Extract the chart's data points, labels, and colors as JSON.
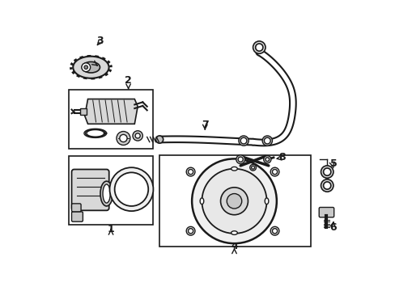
{
  "background_color": "#ffffff",
  "line_color": "#1a1a1a",
  "fig_w": 4.89,
  "fig_h": 3.6,
  "dpi": 100,
  "xlim": [
    0,
    489
  ],
  "ylim": [
    0,
    360
  ]
}
